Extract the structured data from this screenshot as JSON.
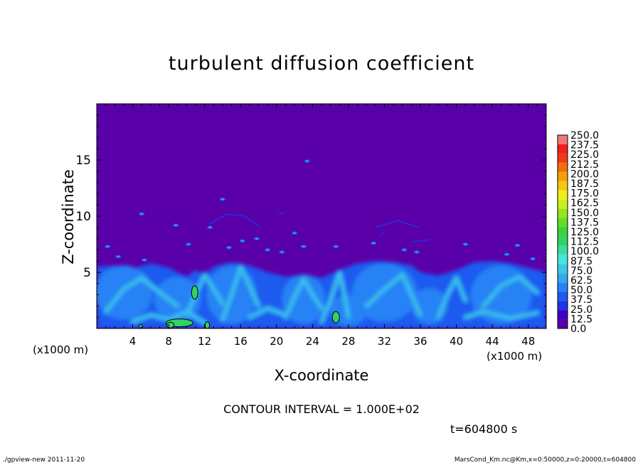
{
  "chart_data": {
    "type": "heatmap",
    "title": "turbulent diffusion coefficient",
    "xlabel": "X-coordinate",
    "ylabel": "Z-coordinate",
    "x_unit_left": "(x1000 m)",
    "x_unit_right": "(x1000 m)",
    "x_ticks": [
      "4",
      "8",
      "12",
      "16",
      "20",
      "24",
      "28",
      "32",
      "36",
      "40",
      "44",
      "48"
    ],
    "y_ticks": [
      "5",
      "10",
      "15"
    ],
    "xlim": [
      0,
      50
    ],
    "ylim": [
      0,
      20
    ],
    "colorbar": {
      "levels": [
        "0.0",
        "12.5",
        "25.0",
        "37.5",
        "50.0",
        "62.5",
        "75.0",
        "87.5",
        "100.0",
        "112.5",
        "125.0",
        "137.5",
        "150.0",
        "162.5",
        "175.0",
        "187.5",
        "200.0",
        "212.5",
        "225.0",
        "237.5",
        "250.0"
      ],
      "colors": [
        "#5a00a8",
        "#3c00c8",
        "#1e32e6",
        "#1e5af0",
        "#2882f5",
        "#32aaf0",
        "#3cc8e6",
        "#46e6dc",
        "#3cdca0",
        "#32d264",
        "#3cd23c",
        "#64dc28",
        "#96e61e",
        "#c8f01e",
        "#f0f014",
        "#f5c80a",
        "#f5a00a",
        "#f56e0a",
        "#f03c14",
        "#f01e1e",
        "#f07878"
      ]
    },
    "contour_interval": "CONTOUR INTERVAL = 1.000E+02",
    "time": "t=604800 s",
    "background_color": "#5a00a8"
  },
  "footer": {
    "left": "./gpview-new   2011-11-20",
    "right": "MarsCond_Km.nc@Km,x=0:50000,z=0:20000,t=604800"
  }
}
